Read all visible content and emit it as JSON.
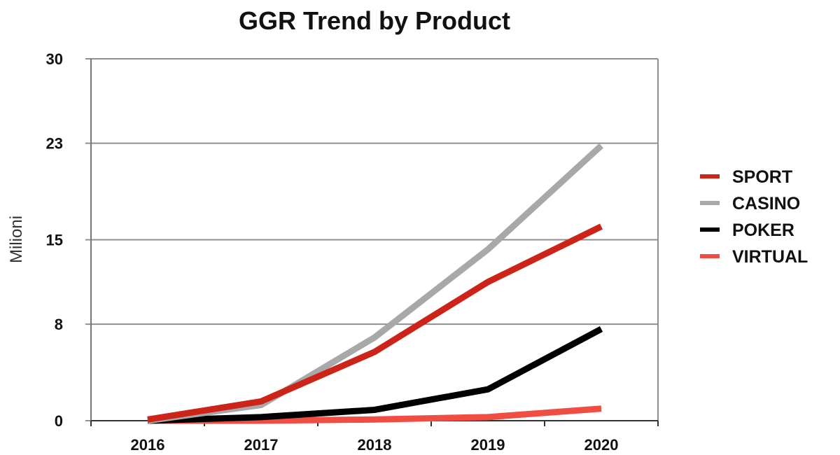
{
  "chart_data": {
    "type": "line",
    "title": "GGR Trend by Product",
    "xlabel": "",
    "ylabel": "Milioni",
    "categories": [
      "2016",
      "2017",
      "2018",
      "2019",
      "2020"
    ],
    "y_ticks": [
      0,
      8,
      15,
      23,
      30
    ],
    "ylim": [
      0,
      30
    ],
    "grid": "horizontal",
    "legend_position": "right",
    "series": [
      {
        "name": "SPORT",
        "color": "#cc2418",
        "values": [
          0.1,
          1.6,
          5.7,
          11.5,
          16.1
        ]
      },
      {
        "name": "CASINO",
        "color": "#a8a8a8",
        "values": [
          0.0,
          1.3,
          6.9,
          14.2,
          22.8
        ]
      },
      {
        "name": "POKER",
        "color": "#000000",
        "values": [
          0.0,
          0.3,
          0.9,
          2.6,
          7.6
        ]
      },
      {
        "name": "VIRTUAL",
        "color": "#f04e43",
        "values": [
          0.0,
          0.0,
          0.1,
          0.3,
          1.0
        ]
      }
    ]
  }
}
